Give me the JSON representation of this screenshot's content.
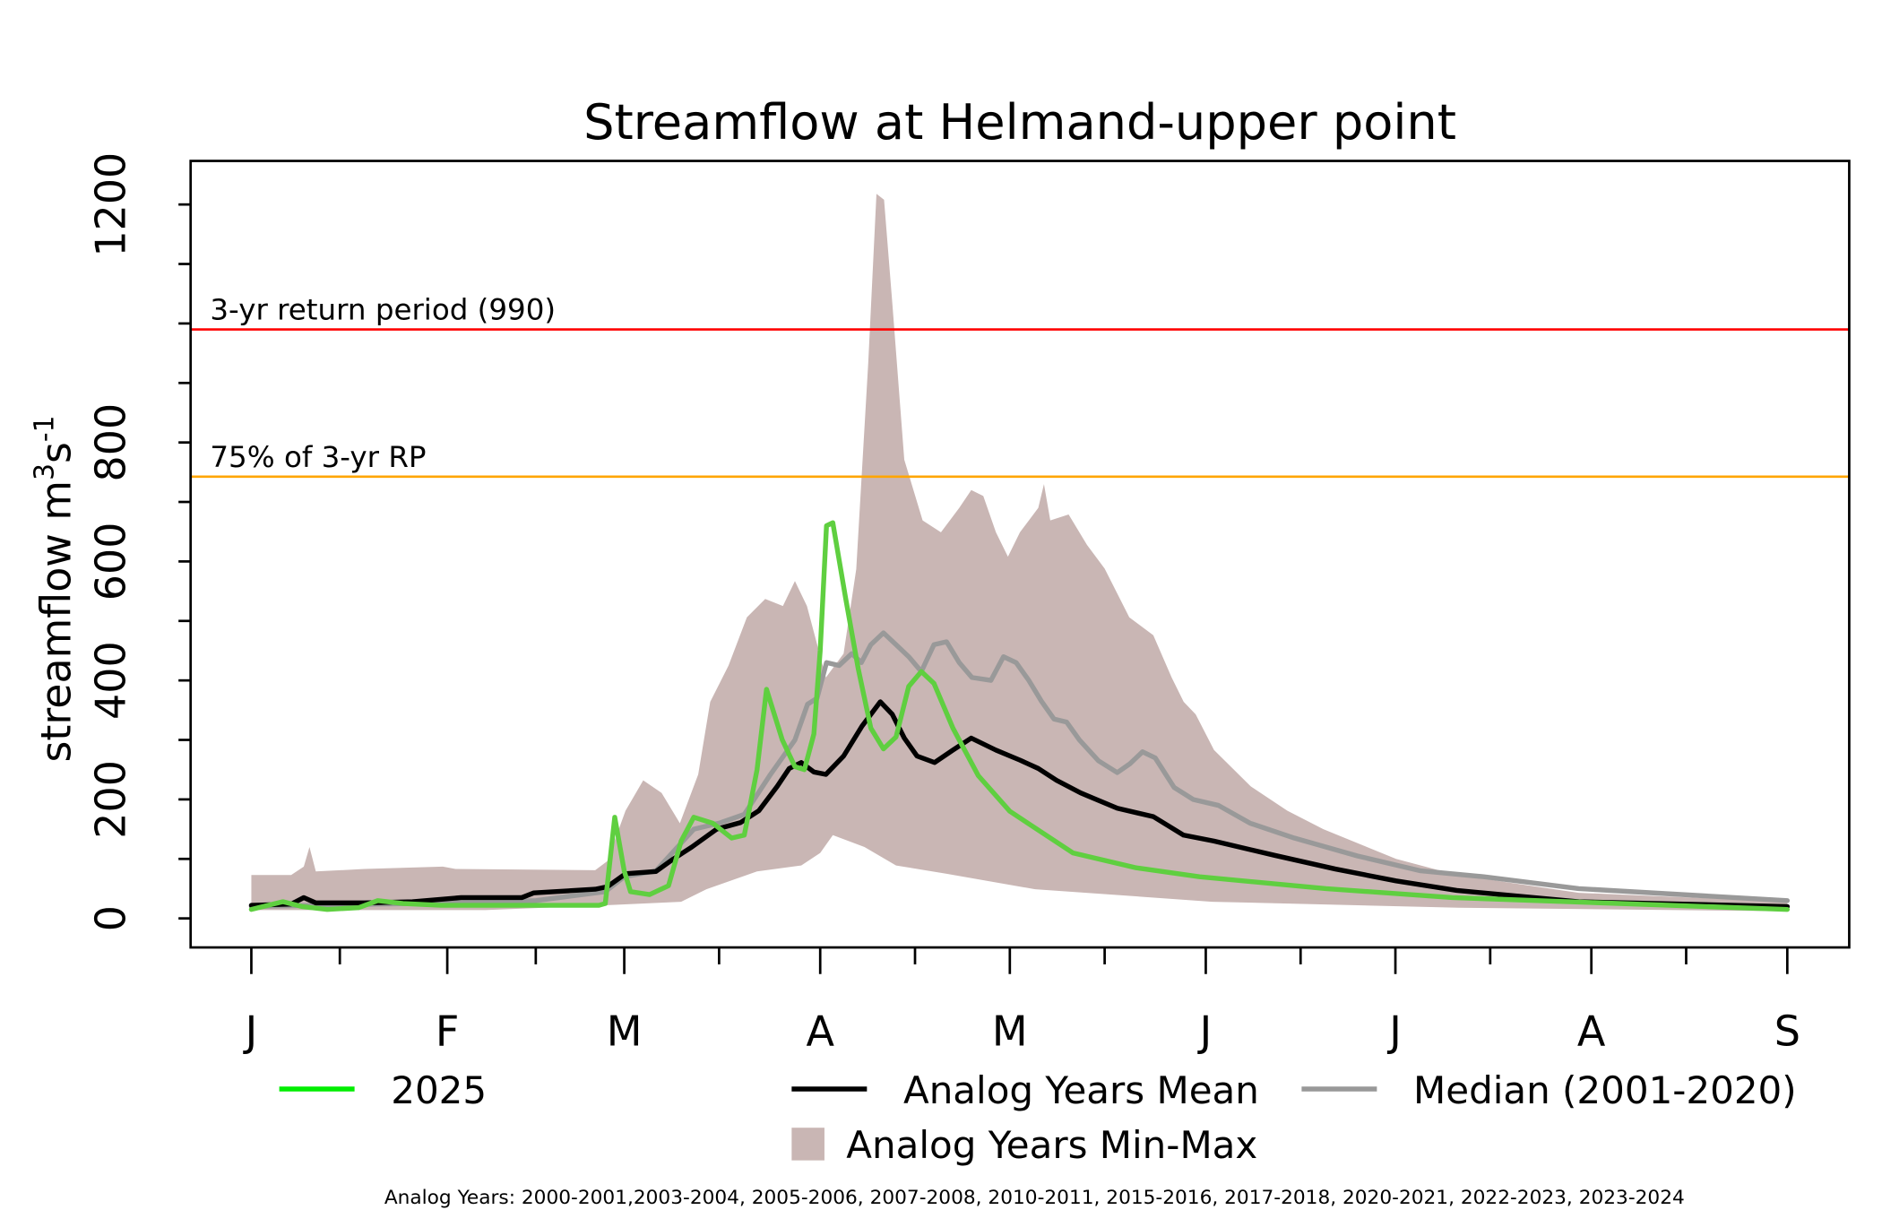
{
  "chart_data": {
    "type": "area",
    "title": "Streamflow at Helmand-upper point",
    "ylabel_main": "streamflow m",
    "ylabel_sup1": "3",
    "ylabel_s": "s",
    "ylabel_sup2": "-1",
    "xlabel": "",
    "x_unit": "days since Jan 1",
    "xlim": [
      0,
      243
    ],
    "ylim": [
      0,
      1200
    ],
    "yticks": [
      0,
      200,
      400,
      600,
      800,
      1000,
      1200
    ],
    "ytick_labels": [
      "0",
      "200",
      "400",
      "600",
      "800",
      "",
      "1200"
    ],
    "xticks": [
      0,
      31,
      59,
      90,
      120,
      151,
      181,
      212,
      243
    ],
    "xtick_labels": [
      "J",
      "F",
      "M",
      "A",
      "M",
      "J",
      "J",
      "A",
      "S"
    ],
    "xminor_ticks": [
      14,
      45,
      74,
      105,
      135,
      166,
      196,
      227
    ],
    "reference_lines": [
      {
        "name": "3-yr return period",
        "value": 990,
        "label": "3-yr return period (990)",
        "color": "#ff0000"
      },
      {
        "name": "75% of 3-yr RP",
        "value": 742.5,
        "label": "75% of 3-yr RP",
        "color": "#ffa500"
      }
    ],
    "band": {
      "name": "Analog Years Min-Max",
      "color": "#c9b6b4",
      "upper": [
        [
          0,
          73
        ],
        [
          6.3,
          73
        ],
        [
          8.3,
          87
        ],
        [
          9.2,
          120
        ],
        [
          10.2,
          79
        ],
        [
          17.9,
          83
        ],
        [
          30.3,
          87
        ],
        [
          32.3,
          83
        ],
        [
          54.4,
          81
        ],
        [
          56.3,
          96
        ],
        [
          59.2,
          181
        ],
        [
          62,
          232
        ],
        [
          64.9,
          211
        ],
        [
          67.8,
          160
        ],
        [
          70.7,
          242
        ],
        [
          72.6,
          364
        ],
        [
          75.5,
          425
        ],
        [
          78.4,
          506
        ],
        [
          81.3,
          537
        ],
        [
          84.1,
          525
        ],
        [
          86,
          567
        ],
        [
          87.9,
          525
        ],
        [
          90.9,
          405
        ],
        [
          93.7,
          445
        ],
        [
          95.7,
          587
        ],
        [
          97.6,
          934
        ],
        [
          98.9,
          1218
        ],
        [
          100.1,
          1208
        ],
        [
          101.4,
          1035
        ],
        [
          103.3,
          771
        ],
        [
          106.2,
          669
        ],
        [
          109.1,
          649
        ],
        [
          112,
          690
        ],
        [
          113.9,
          720
        ],
        [
          115.8,
          710
        ],
        [
          117.8,
          649
        ],
        [
          119.7,
          608
        ],
        [
          121.6,
          649
        ],
        [
          124.5,
          690
        ],
        [
          125.4,
          730
        ],
        [
          126.4,
          669
        ],
        [
          129.3,
          679
        ],
        [
          132.2,
          628
        ],
        [
          135,
          588
        ],
        [
          138.9,
          506
        ],
        [
          142.7,
          476
        ],
        [
          145.6,
          405
        ],
        [
          147.5,
          364
        ],
        [
          149.4,
          343
        ],
        [
          152.3,
          283
        ],
        [
          158.1,
          222
        ],
        [
          163.9,
          181
        ],
        [
          169.6,
          150
        ],
        [
          181.1,
          100
        ],
        [
          190.7,
          73
        ],
        [
          210,
          43
        ],
        [
          243,
          28
        ]
      ],
      "lower": [
        [
          0,
          14
        ],
        [
          37,
          14
        ],
        [
          56,
          22
        ],
        [
          68,
          28
        ],
        [
          72,
          49
        ],
        [
          80,
          79
        ],
        [
          87,
          89
        ],
        [
          90,
          110
        ],
        [
          92,
          140
        ],
        [
          97,
          120
        ],
        [
          102,
          89
        ],
        [
          110,
          75
        ],
        [
          124,
          49
        ],
        [
          152,
          28
        ],
        [
          191,
          18
        ],
        [
          243,
          12
        ]
      ]
    },
    "series": [
      {
        "name": "Median (2001-2020)",
        "color": "#999999",
        "points": [
          [
            0,
            20
          ],
          [
            30,
            26
          ],
          [
            45,
            30
          ],
          [
            56,
            45
          ],
          [
            59,
            70
          ],
          [
            64,
            80
          ],
          [
            70,
            150
          ],
          [
            74,
            160
          ],
          [
            78,
            175
          ],
          [
            82,
            240
          ],
          [
            86,
            300
          ],
          [
            88,
            360
          ],
          [
            89.5,
            370
          ],
          [
            91,
            430
          ],
          [
            93,
            425
          ],
          [
            95,
            445
          ],
          [
            96.5,
            430
          ],
          [
            98,
            460
          ],
          [
            100,
            480
          ],
          [
            102,
            460
          ],
          [
            104,
            440
          ],
          [
            106,
            415
          ],
          [
            108,
            460
          ],
          [
            110,
            465
          ],
          [
            112,
            430
          ],
          [
            114,
            405
          ],
          [
            117,
            400
          ],
          [
            119,
            440
          ],
          [
            121,
            430
          ],
          [
            123,
            400
          ],
          [
            125,
            365
          ],
          [
            127,
            335
          ],
          [
            129,
            330
          ],
          [
            131,
            300
          ],
          [
            134,
            265
          ],
          [
            137,
            245
          ],
          [
            139,
            260
          ],
          [
            141,
            280
          ],
          [
            143,
            270
          ],
          [
            146,
            220
          ],
          [
            149,
            200
          ],
          [
            153,
            190
          ],
          [
            158,
            160
          ],
          [
            165,
            135
          ],
          [
            175,
            105
          ],
          [
            185,
            80
          ],
          [
            195,
            70
          ],
          [
            210,
            50
          ],
          [
            243,
            30
          ]
        ]
      },
      {
        "name": "Analog Years Mean",
        "color": "#000000",
        "points": [
          [
            0,
            22
          ],
          [
            6.3,
            24
          ],
          [
            8.3,
            35
          ],
          [
            10.2,
            26
          ],
          [
            17.9,
            26
          ],
          [
            25.5,
            28
          ],
          [
            33.2,
            35
          ],
          [
            42.8,
            35
          ],
          [
            44.7,
            43
          ],
          [
            54.4,
            49
          ],
          [
            56.3,
            53
          ],
          [
            59.2,
            75
          ],
          [
            64,
            79
          ],
          [
            66.8,
            100
          ],
          [
            69.7,
            120
          ],
          [
            73.6,
            150
          ],
          [
            77.4,
            161
          ],
          [
            80.3,
            181
          ],
          [
            83.2,
            222
          ],
          [
            85.1,
            252
          ],
          [
            87,
            262
          ],
          [
            89,
            246
          ],
          [
            90.9,
            242
          ],
          [
            93.7,
            273
          ],
          [
            96.6,
            323
          ],
          [
            99.5,
            364
          ],
          [
            101.4,
            343
          ],
          [
            103.3,
            303
          ],
          [
            105.3,
            273
          ],
          [
            108.1,
            262
          ],
          [
            111,
            283
          ],
          [
            113.9,
            303
          ],
          [
            117.8,
            283
          ],
          [
            121.6,
            266
          ],
          [
            124.5,
            252
          ],
          [
            127.4,
            232
          ],
          [
            131.2,
            211
          ],
          [
            137,
            185
          ],
          [
            142.7,
            171
          ],
          [
            147.5,
            140
          ],
          [
            152.3,
            130
          ],
          [
            161.9,
            106
          ],
          [
            171.5,
            83
          ],
          [
            181.1,
            63
          ],
          [
            190.7,
            47
          ],
          [
            210,
            28
          ],
          [
            243,
            20
          ]
        ]
      },
      {
        "name": "2025",
        "color": "#5fcf40",
        "points": [
          [
            0,
            15
          ],
          [
            5,
            28
          ],
          [
            8,
            20
          ],
          [
            12,
            15
          ],
          [
            17,
            18
          ],
          [
            20,
            30
          ],
          [
            24,
            25
          ],
          [
            30,
            22
          ],
          [
            55,
            22
          ],
          [
            56,
            25
          ],
          [
            57.5,
            170
          ],
          [
            59,
            80
          ],
          [
            60,
            45
          ],
          [
            63,
            40
          ],
          [
            66,
            55
          ],
          [
            68,
            130
          ],
          [
            70,
            170
          ],
          [
            73,
            160
          ],
          [
            76,
            135
          ],
          [
            78,
            140
          ],
          [
            80,
            250
          ],
          [
            81.5,
            385
          ],
          [
            84,
            300
          ],
          [
            86,
            255
          ],
          [
            87.5,
            250
          ],
          [
            89,
            310
          ],
          [
            90,
            450
          ],
          [
            91,
            660
          ],
          [
            92,
            665
          ],
          [
            94,
            540
          ],
          [
            96,
            420
          ],
          [
            98,
            320
          ],
          [
            100,
            285
          ],
          [
            102,
            305
          ],
          [
            104,
            390
          ],
          [
            106,
            415
          ],
          [
            108,
            395
          ],
          [
            111,
            320
          ],
          [
            115,
            240
          ],
          [
            120,
            180
          ],
          [
            130,
            110
          ],
          [
            140,
            85
          ],
          [
            150,
            70
          ],
          [
            170,
            50
          ],
          [
            190,
            35
          ],
          [
            243,
            15
          ]
        ]
      }
    ],
    "legend": {
      "placement": "bottom",
      "items": [
        {
          "label": "2025",
          "color": "#00ee00",
          "kind": "line"
        },
        {
          "label": "Analog Years Mean",
          "color": "#000000",
          "kind": "line"
        },
        {
          "label": "Median (2001-2020)",
          "color": "#999999",
          "kind": "line"
        },
        {
          "label": "Analog Years Min-Max",
          "color": "#c9b6b4",
          "kind": "box"
        }
      ]
    },
    "footnote": "Analog Years: 2000-2001,2003-2004, 2005-2006, 2007-2008, 2010-2011, 2015-2016, 2017-2018, 2020-2021, 2022-2023, 2023-2024"
  }
}
